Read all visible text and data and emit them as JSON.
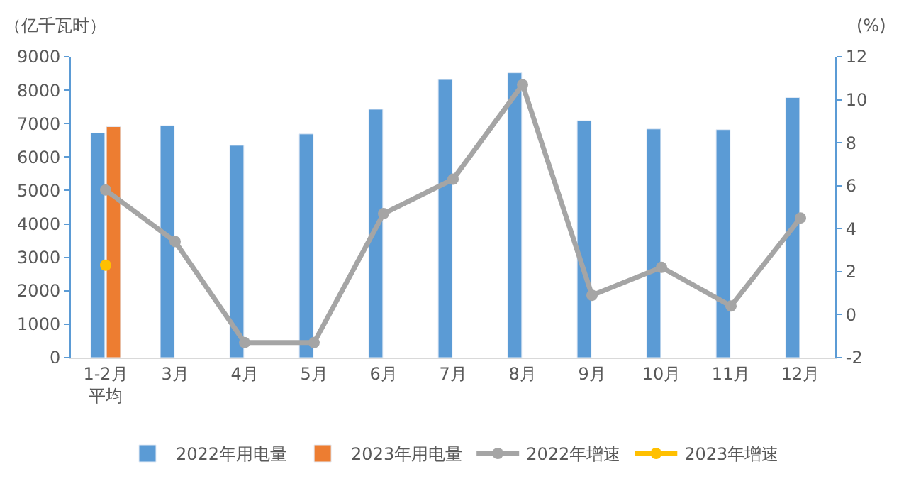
{
  "chart_data": {
    "type": "bar",
    "ylabel": "（亿千瓦时）",
    "y2label": "(%)",
    "categories": [
      "1-2月平均",
      "3月",
      "4月",
      "5月",
      "6月",
      "7月",
      "8月",
      "9月",
      "10月",
      "11月",
      "12月"
    ],
    "series": [
      {
        "name": "2022年用电量",
        "color": "#5b9bd5",
        "values": [
          6720,
          6940,
          6350,
          6690,
          7430,
          8320,
          8520,
          7090,
          6840,
          6820,
          7780
        ]
      },
      {
        "name": "2023年用电量",
        "color": "#ed7d31",
        "values": [
          6910,
          null,
          null,
          null,
          null,
          null,
          null,
          null,
          null,
          null,
          null
        ]
      },
      {
        "name": "2022年增速",
        "type": "line",
        "axis": "y2",
        "color": "#a5a5a5",
        "values": [
          5.8,
          3.4,
          -1.3,
          -1.3,
          4.7,
          6.3,
          10.7,
          0.9,
          2.2,
          0.4,
          4.5
        ]
      },
      {
        "name": "2023年增速",
        "type": "line",
        "axis": "y2",
        "color": "#ffc000",
        "values": [
          2.3,
          null,
          null,
          null,
          null,
          null,
          null,
          null,
          null,
          null,
          null
        ]
      }
    ],
    "ylim": [
      0,
      9000
    ],
    "yticks": [
      0,
      1000,
      2000,
      3000,
      4000,
      5000,
      6000,
      7000,
      8000,
      9000
    ],
    "y2lim": [
      -2,
      12
    ],
    "y2ticks": [
      -2,
      0,
      2,
      4,
      6,
      8,
      10,
      12
    ],
    "legend": "bottom",
    "marker": "circle"
  }
}
